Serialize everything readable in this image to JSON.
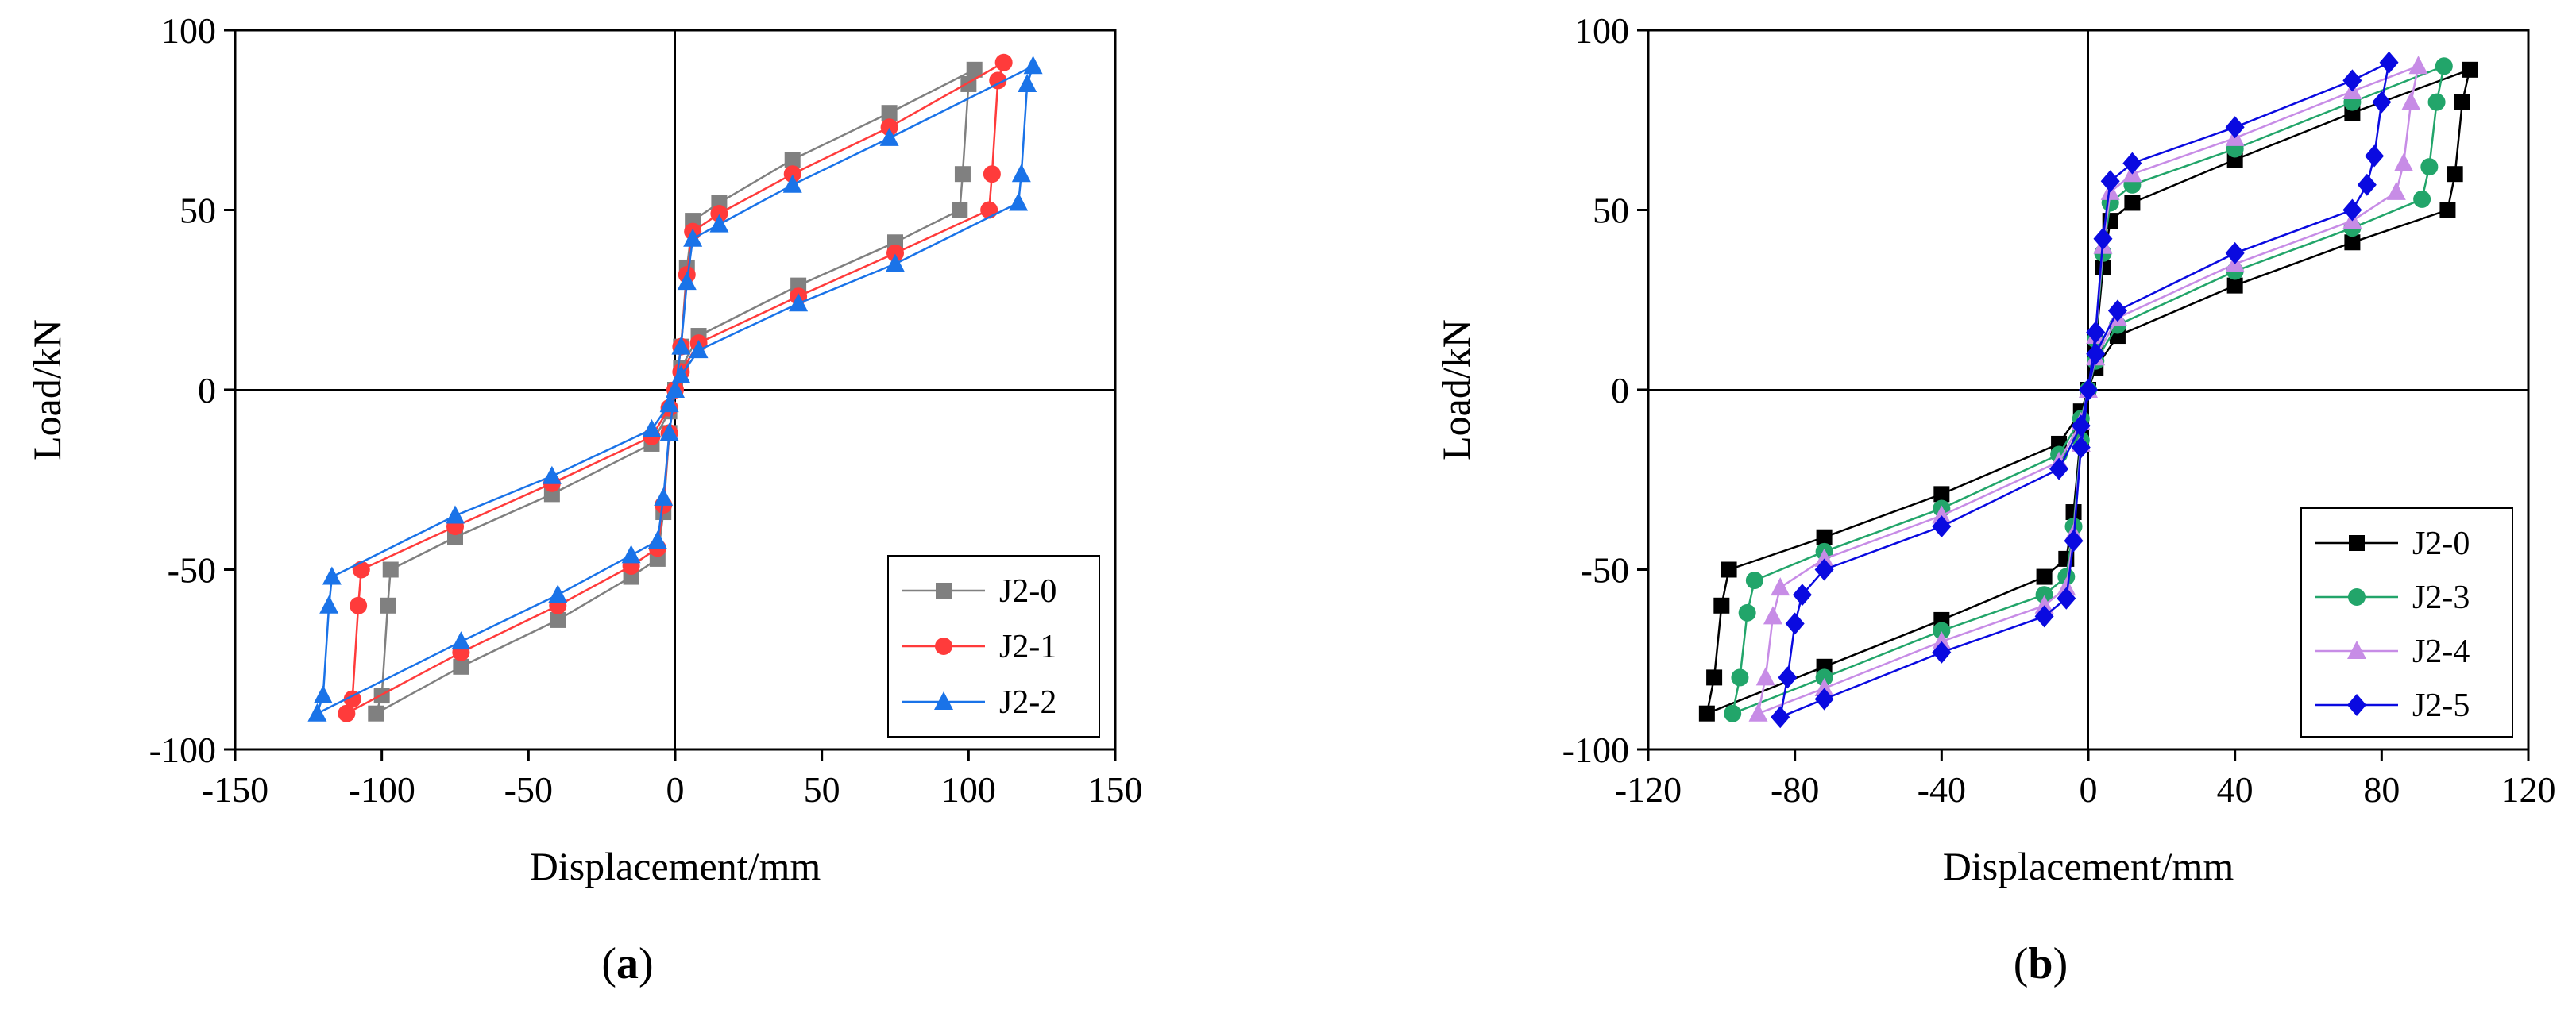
{
  "chart_data": [
    {
      "id": "a",
      "type": "line",
      "panel_label": "(a)",
      "panel_letter": "a",
      "xlabel": "Displacement/mm",
      "ylabel": "Load/kN",
      "xlim": [
        -150,
        150
      ],
      "ylim": [
        -100,
        100
      ],
      "xticks": [
        -150,
        -100,
        -50,
        0,
        50,
        100,
        150
      ],
      "yticks": [
        -100,
        -50,
        0,
        50,
        100
      ],
      "xtick_labels": [
        "-150",
        "-100",
        "-50",
        "0",
        "50",
        "100",
        "150"
      ],
      "ytick_labels": [
        "-100",
        "-50",
        "0",
        "50",
        "100"
      ],
      "legend_position": "bottom-right",
      "series": [
        {
          "name": "J2-0",
          "color": "#808080",
          "marker": "square",
          "points": [
            [
              0,
              0
            ],
            [
              2,
              12
            ],
            [
              4,
              34
            ],
            [
              6,
              47
            ],
            [
              15,
              52
            ],
            [
              40,
              64
            ],
            [
              73,
              77
            ],
            [
              102,
              89
            ],
            [
              100,
              85
            ],
            [
              98,
              60
            ],
            [
              97,
              50
            ],
            [
              75,
              41
            ],
            [
              42,
              29
            ],
            [
              8,
              15
            ],
            [
              2,
              6
            ],
            [
              0,
              0
            ],
            [
              -2,
              -12
            ],
            [
              -4,
              -34
            ],
            [
              -6,
              -47
            ],
            [
              -15,
              -52
            ],
            [
              -40,
              -64
            ],
            [
              -73,
              -77
            ],
            [
              -102,
              -90
            ],
            [
              -100,
              -85
            ],
            [
              -98,
              -60
            ],
            [
              -97,
              -50
            ],
            [
              -75,
              -41
            ],
            [
              -42,
              -29
            ],
            [
              -8,
              -15
            ],
            [
              -2,
              -6
            ],
            [
              0,
              0
            ]
          ]
        },
        {
          "name": "J2-1",
          "color": "#ff3b3b",
          "marker": "circle",
          "points": [
            [
              0,
              0
            ],
            [
              2,
              12
            ],
            [
              4,
              32
            ],
            [
              6,
              44
            ],
            [
              15,
              49
            ],
            [
              40,
              60
            ],
            [
              73,
              73
            ],
            [
              112,
              91
            ],
            [
              110,
              86
            ],
            [
              108,
              60
            ],
            [
              107,
              50
            ],
            [
              75,
              38
            ],
            [
              42,
              26
            ],
            [
              8,
              13
            ],
            [
              2,
              5
            ],
            [
              0,
              0
            ],
            [
              -2,
              -12
            ],
            [
              -4,
              -32
            ],
            [
              -6,
              -44
            ],
            [
              -15,
              -49
            ],
            [
              -40,
              -60
            ],
            [
              -73,
              -73
            ],
            [
              -112,
              -90
            ],
            [
              -110,
              -86
            ],
            [
              -108,
              -60
            ],
            [
              -107,
              -50
            ],
            [
              -75,
              -38
            ],
            [
              -42,
              -26
            ],
            [
              -8,
              -13
            ],
            [
              -2,
              -5
            ],
            [
              0,
              0
            ]
          ]
        },
        {
          "name": "J2-2",
          "color": "#1a73e8",
          "marker": "triangle",
          "points": [
            [
              0,
              0
            ],
            [
              2,
              12
            ],
            [
              4,
              30
            ],
            [
              6,
              42
            ],
            [
              15,
              46
            ],
            [
              40,
              57
            ],
            [
              73,
              70
            ],
            [
              122,
              90
            ],
            [
              120,
              85
            ],
            [
              118,
              60
            ],
            [
              117,
              52
            ],
            [
              75,
              35
            ],
            [
              42,
              24
            ],
            [
              8,
              11
            ],
            [
              2,
              4
            ],
            [
              0,
              0
            ],
            [
              -2,
              -12
            ],
            [
              -4,
              -30
            ],
            [
              -6,
              -42
            ],
            [
              -15,
              -46
            ],
            [
              -40,
              -57
            ],
            [
              -73,
              -70
            ],
            [
              -122,
              -90
            ],
            [
              -120,
              -85
            ],
            [
              -118,
              -60
            ],
            [
              -117,
              -52
            ],
            [
              -75,
              -35
            ],
            [
              -42,
              -24
            ],
            [
              -8,
              -11
            ],
            [
              -2,
              -4
            ],
            [
              0,
              0
            ]
          ]
        }
      ]
    },
    {
      "id": "b",
      "type": "line",
      "panel_label": "(b)",
      "panel_letter": "b",
      "xlabel": "Displacement/mm",
      "ylabel": "Load/kN",
      "xlim": [
        -120,
        120
      ],
      "ylim": [
        -100,
        100
      ],
      "xticks": [
        -120,
        -80,
        -40,
        0,
        40,
        80,
        120
      ],
      "yticks": [
        -100,
        -50,
        0,
        50,
        100
      ],
      "xtick_labels": [
        "-120",
        "-80",
        "-40",
        "0",
        "40",
        "80",
        "120"
      ],
      "ytick_labels": [
        "-100",
        "-50",
        "0",
        "50",
        "100"
      ],
      "legend_position": "bottom-right",
      "series": [
        {
          "name": "J2-0",
          "color": "#000000",
          "marker": "square",
          "points": [
            [
              0,
              0
            ],
            [
              2,
              12
            ],
            [
              4,
              34
            ],
            [
              6,
              47
            ],
            [
              12,
              52
            ],
            [
              40,
              64
            ],
            [
              72,
              77
            ],
            [
              104,
              89
            ],
            [
              102,
              80
            ],
            [
              100,
              60
            ],
            [
              98,
              50
            ],
            [
              72,
              41
            ],
            [
              40,
              29
            ],
            [
              8,
              15
            ],
            [
              2,
              6
            ],
            [
              0,
              0
            ],
            [
              -2,
              -12
            ],
            [
              -4,
              -34
            ],
            [
              -6,
              -47
            ],
            [
              -12,
              -52
            ],
            [
              -40,
              -64
            ],
            [
              -72,
              -77
            ],
            [
              -104,
              -90
            ],
            [
              -102,
              -80
            ],
            [
              -100,
              -60
            ],
            [
              -98,
              -50
            ],
            [
              -72,
              -41
            ],
            [
              -40,
              -29
            ],
            [
              -8,
              -15
            ],
            [
              -2,
              -6
            ],
            [
              0,
              0
            ]
          ]
        },
        {
          "name": "J2-3",
          "color": "#22a56a",
          "marker": "circle",
          "points": [
            [
              0,
              0
            ],
            [
              2,
              14
            ],
            [
              4,
              38
            ],
            [
              6,
              52
            ],
            [
              12,
              57
            ],
            [
              40,
              67
            ],
            [
              72,
              80
            ],
            [
              97,
              90
            ],
            [
              95,
              80
            ],
            [
              93,
              62
            ],
            [
              91,
              53
            ],
            [
              72,
              45
            ],
            [
              40,
              33
            ],
            [
              8,
              18
            ],
            [
              2,
              8
            ],
            [
              0,
              0
            ],
            [
              -2,
              -14
            ],
            [
              -4,
              -38
            ],
            [
              -6,
              -52
            ],
            [
              -12,
              -57
            ],
            [
              -40,
              -67
            ],
            [
              -72,
              -80
            ],
            [
              -97,
              -90
            ],
            [
              -95,
              -80
            ],
            [
              -93,
              -62
            ],
            [
              -91,
              -53
            ],
            [
              -72,
              -45
            ],
            [
              -40,
              -33
            ],
            [
              -8,
              -18
            ],
            [
              -2,
              -8
            ],
            [
              0,
              0
            ]
          ]
        },
        {
          "name": "J2-4",
          "color": "#c78ce6",
          "marker": "triangle",
          "points": [
            [
              0,
              0
            ],
            [
              2,
              15
            ],
            [
              4,
              40
            ],
            [
              6,
              55
            ],
            [
              12,
              60
            ],
            [
              40,
              70
            ],
            [
              72,
              83
            ],
            [
              90,
              90
            ],
            [
              88,
              80
            ],
            [
              86,
              63
            ],
            [
              84,
              55
            ],
            [
              72,
              47
            ],
            [
              40,
              35
            ],
            [
              8,
              20
            ],
            [
              2,
              9
            ],
            [
              0,
              0
            ],
            [
              -2,
              -15
            ],
            [
              -4,
              -40
            ],
            [
              -6,
              -55
            ],
            [
              -12,
              -60
            ],
            [
              -40,
              -70
            ],
            [
              -72,
              -83
            ],
            [
              -90,
              -90
            ],
            [
              -88,
              -80
            ],
            [
              -86,
              -63
            ],
            [
              -84,
              -55
            ],
            [
              -72,
              -47
            ],
            [
              -40,
              -35
            ],
            [
              -8,
              -20
            ],
            [
              -2,
              -9
            ],
            [
              0,
              0
            ]
          ]
        },
        {
          "name": "J2-5",
          "color": "#0a0ae0",
          "marker": "diamond",
          "points": [
            [
              0,
              0
            ],
            [
              2,
              16
            ],
            [
              4,
              42
            ],
            [
              6,
              58
            ],
            [
              12,
              63
            ],
            [
              40,
              73
            ],
            [
              72,
              86
            ],
            [
              82,
              91
            ],
            [
              80,
              80
            ],
            [
              78,
              65
            ],
            [
              76,
              57
            ],
            [
              72,
              50
            ],
            [
              40,
              38
            ],
            [
              8,
              22
            ],
            [
              2,
              10
            ],
            [
              0,
              0
            ],
            [
              -2,
              -16
            ],
            [
              -4,
              -42
            ],
            [
              -6,
              -58
            ],
            [
              -12,
              -63
            ],
            [
              -40,
              -73
            ],
            [
              -72,
              -86
            ],
            [
              -84,
              -91
            ],
            [
              -82,
              -80
            ],
            [
              -80,
              -65
            ],
            [
              -78,
              -57
            ],
            [
              -72,
              -50
            ],
            [
              -40,
              -38
            ],
            [
              -8,
              -22
            ],
            [
              -2,
              -10
            ],
            [
              0,
              0
            ]
          ]
        }
      ]
    }
  ]
}
